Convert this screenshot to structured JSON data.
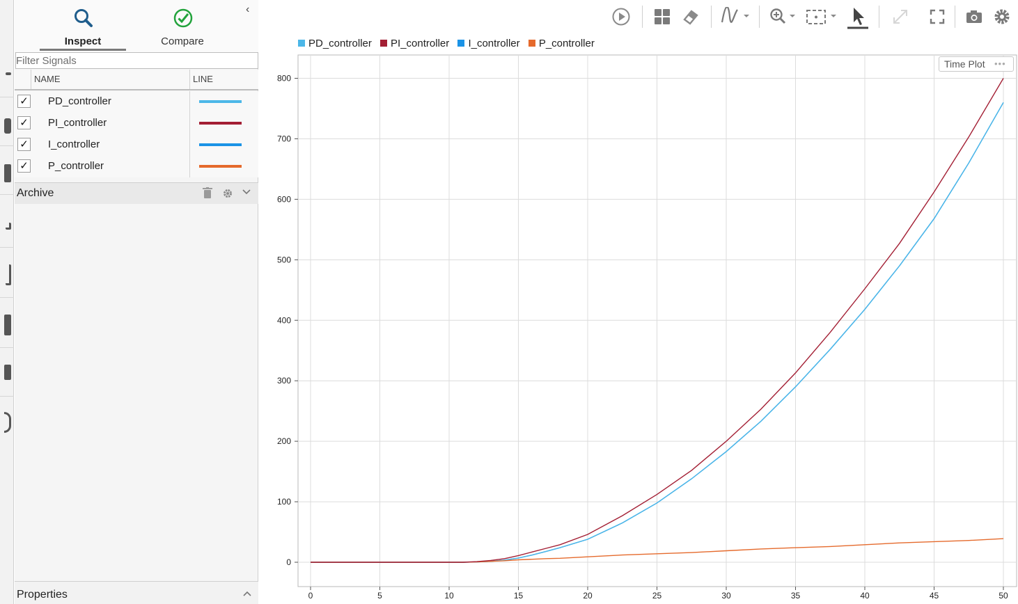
{
  "inspector": {
    "tabs": [
      {
        "label": "Inspect",
        "icon": "search-icon",
        "active": true
      },
      {
        "label": "Compare",
        "icon": "check-circle-icon",
        "active": false
      }
    ],
    "filter_placeholder": "Filter Signals",
    "columns": {
      "name": "NAME",
      "line": "LINE"
    },
    "signals": [
      {
        "name": "PD_controller",
        "checked": true,
        "check_mark": "✓",
        "color": "#4cb7e8"
      },
      {
        "name": "PI_controller",
        "checked": true,
        "check_mark": "✓",
        "color": "#a31f34"
      },
      {
        "name": "I_controller",
        "checked": true,
        "check_mark": "✓",
        "color": "#1b93e6"
      },
      {
        "name": "P_controller",
        "checked": true,
        "check_mark": "✓",
        "color": "#e56a2c"
      }
    ],
    "archive": {
      "label": "Archive"
    },
    "properties": {
      "label": "Properties"
    }
  },
  "toolbar": {
    "icons": [
      "play-icon",
      "layout-grid-icon",
      "eraser-icon",
      "signal-wave-icon",
      "zoom-icon",
      "fit-to-view-icon",
      "cursor-icon",
      "expand-icon",
      "fullscreen-icon",
      "camera-icon",
      "settings-icon"
    ]
  },
  "plot": {
    "badge": "Time Plot",
    "badge_dots": "•••"
  },
  "chart_data": {
    "type": "line",
    "title": "",
    "xlabel": "",
    "ylabel": "",
    "xlim": [
      0,
      50
    ],
    "ylim": [
      -40,
      830
    ],
    "xticks": [
      0,
      5,
      10,
      15,
      20,
      25,
      30,
      35,
      40,
      45,
      50
    ],
    "yticks": [
      0,
      100,
      200,
      300,
      400,
      500,
      600,
      700,
      800
    ],
    "grid": true,
    "legend": "top-left",
    "x": [
      0,
      5,
      10,
      11,
      12,
      13,
      14,
      15,
      16,
      17,
      18,
      20,
      22.5,
      25,
      27.5,
      30,
      32.5,
      35,
      37.5,
      40,
      42.5,
      45,
      47.5,
      50
    ],
    "series": [
      {
        "name": "PD_controller",
        "color": "#4cb7e8",
        "values": [
          0,
          0,
          0,
          0,
          0.5,
          1.5,
          3.5,
          7,
          12,
          18,
          24,
          38,
          65,
          98,
          138,
          183,
          233,
          290,
          352,
          418,
          490,
          568,
          660,
          760
        ]
      },
      {
        "name": "PI_controller",
        "color": "#a31f34",
        "values": [
          0,
          0,
          0,
          0,
          1,
          3,
          6,
          11,
          17,
          23,
          29,
          46,
          77,
          112,
          152,
          200,
          253,
          313,
          380,
          452,
          527,
          612,
          703,
          800
        ]
      },
      {
        "name": "I_controller",
        "color": "#1b93e6",
        "values": [
          0,
          0,
          0,
          0,
          0.5,
          1.5,
          3.5,
          7,
          12,
          18,
          24,
          38,
          65,
          98,
          138,
          183,
          233,
          290,
          352,
          418,
          490,
          568,
          660,
          760
        ]
      },
      {
        "name": "P_controller",
        "color": "#e56a2c",
        "values": [
          0,
          0,
          0,
          0,
          0.5,
          1.5,
          2.5,
          4,
          5,
          6,
          6.5,
          9,
          12,
          14,
          16,
          19,
          22,
          24,
          26,
          29,
          32,
          34,
          36,
          39
        ]
      }
    ]
  }
}
